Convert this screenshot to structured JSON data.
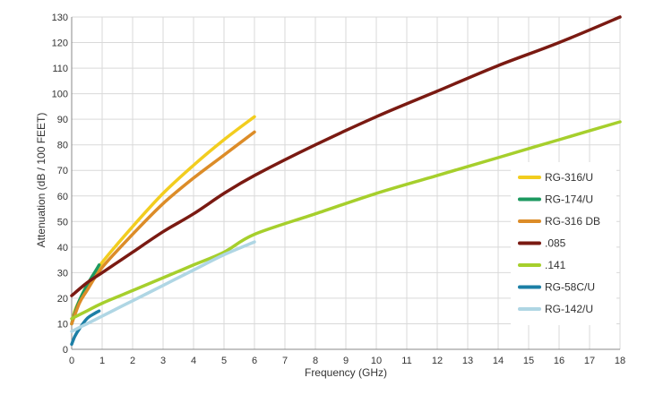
{
  "chart_data": {
    "type": "line",
    "xlabel": "Frequency (GHz)",
    "ylabel": "Attenuation (dB / 100 FEET)",
    "xlim": [
      0,
      18
    ],
    "ylim": [
      0,
      130
    ],
    "x_ticks": [
      "0",
      "1",
      "2",
      "3",
      "4",
      "5",
      "6",
      "7",
      "8",
      "9",
      "10",
      "11",
      "12",
      "13",
      "14",
      "15",
      "16",
      "17",
      "18"
    ],
    "y_ticks": [
      "0",
      "10",
      "20",
      "30",
      "40",
      "50",
      "60",
      "70",
      "80",
      "90",
      "100",
      "110",
      "120",
      "130"
    ],
    "grid": true,
    "legend_position": "right",
    "series": [
      {
        "name": "RG-316/U",
        "color": "#f2cd1f",
        "points": [
          [
            0,
            10
          ],
          [
            0.1,
            15
          ],
          [
            0.25,
            19
          ],
          [
            0.5,
            25
          ],
          [
            1,
            34
          ],
          [
            2,
            48
          ],
          [
            3,
            61
          ],
          [
            4,
            72
          ],
          [
            5,
            82
          ],
          [
            6,
            91
          ]
        ]
      },
      {
        "name": "RG-174/U",
        "color": "#1d9960",
        "points": [
          [
            0,
            10
          ],
          [
            0.1,
            14
          ],
          [
            0.25,
            19
          ],
          [
            0.5,
            25
          ],
          [
            0.75,
            30
          ],
          [
            0.9,
            33
          ]
        ]
      },
      {
        "name": "RG-316 DB",
        "color": "#dc8c28",
        "points": [
          [
            0,
            10
          ],
          [
            0.25,
            18
          ],
          [
            0.5,
            23
          ],
          [
            1,
            32
          ],
          [
            2,
            45
          ],
          [
            3,
            57
          ],
          [
            4,
            67
          ],
          [
            5,
            76
          ],
          [
            6,
            85
          ]
        ]
      },
      {
        "name": ".085",
        "color": "#7a1a12",
        "points": [
          [
            0,
            21
          ],
          [
            0.5,
            26
          ],
          [
            1,
            30
          ],
          [
            2,
            38
          ],
          [
            3,
            46
          ],
          [
            4,
            53
          ],
          [
            5,
            61
          ],
          [
            6,
            68
          ],
          [
            8,
            80
          ],
          [
            10,
            91
          ],
          [
            12,
            101
          ],
          [
            14,
            111
          ],
          [
            16,
            120
          ],
          [
            18,
            130
          ]
        ]
      },
      {
        "name": ".141",
        "color": "#a6cf2c",
        "points": [
          [
            0,
            12
          ],
          [
            0.5,
            15
          ],
          [
            1,
            18
          ],
          [
            2,
            23
          ],
          [
            3,
            28
          ],
          [
            4,
            33
          ],
          [
            5,
            38
          ],
          [
            6,
            45
          ],
          [
            8,
            53
          ],
          [
            10,
            61
          ],
          [
            12,
            68
          ],
          [
            14,
            75
          ],
          [
            16,
            82
          ],
          [
            18,
            89
          ]
        ]
      },
      {
        "name": "RG-58C/U",
        "color": "#1c7fa6",
        "points": [
          [
            0,
            2
          ],
          [
            0.1,
            5
          ],
          [
            0.25,
            8
          ],
          [
            0.5,
            12
          ],
          [
            0.75,
            14
          ],
          [
            0.9,
            15
          ]
        ]
      },
      {
        "name": "RG-142/U",
        "color": "#afd6e4",
        "points": [
          [
            0,
            7
          ],
          [
            0.5,
            10
          ],
          [
            1,
            13
          ],
          [
            2,
            19
          ],
          [
            3,
            25
          ],
          [
            4,
            31
          ],
          [
            5,
            37
          ],
          [
            6,
            42
          ]
        ]
      }
    ]
  }
}
